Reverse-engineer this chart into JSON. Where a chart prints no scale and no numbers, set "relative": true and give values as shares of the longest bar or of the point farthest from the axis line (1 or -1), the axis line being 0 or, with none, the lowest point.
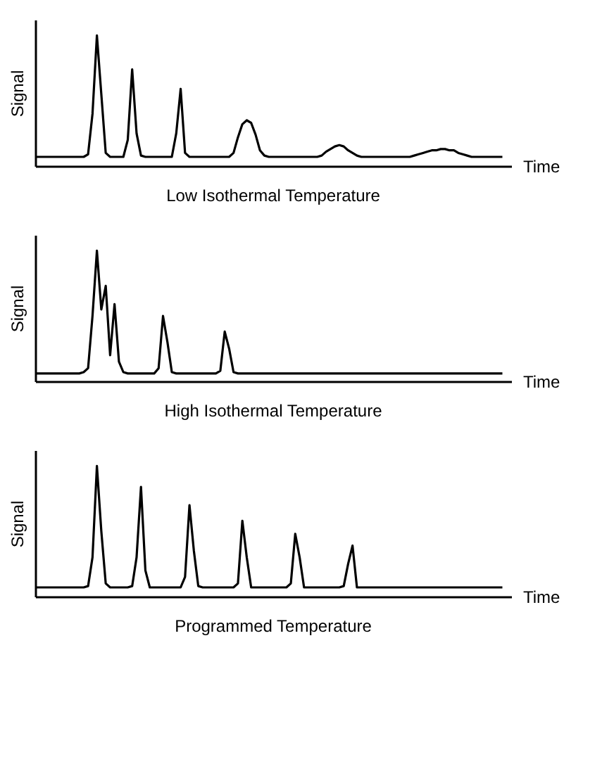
{
  "chart_data": [
    {
      "type": "line",
      "relative": true,
      "title": "Low Isothermal Temperature",
      "xlabel": "Time",
      "ylabel": "Signal",
      "categories": [
        null,
        null,
        null,
        null,
        null,
        null,
        null,
        null,
        null,
        null,
        null,
        null,
        null,
        null,
        null,
        null,
        null,
        null,
        null,
        null,
        null,
        null,
        null,
        null,
        null,
        null,
        null,
        null,
        null,
        null,
        null,
        null,
        null,
        null,
        null,
        null,
        null,
        null,
        null,
        null,
        null,
        null,
        null,
        null,
        null,
        null,
        null,
        null,
        null,
        null,
        null,
        null,
        null,
        null,
        null,
        null,
        null,
        null,
        null,
        null,
        null,
        null,
        null,
        null,
        null,
        null,
        null,
        null,
        null,
        null,
        null,
        null,
        null,
        null,
        null,
        null,
        null,
        null,
        null,
        null,
        null,
        null,
        null,
        null,
        null,
        null,
        null,
        null,
        null,
        null,
        null,
        null,
        null,
        null,
        null,
        null,
        null,
        null,
        null,
        null,
        null,
        null,
        null,
        null,
        null,
        null,
        null,
        null,
        null
      ],
      "series": [
        {
          "color": "#000000",
          "values": [
            0.07,
            0.07,
            0.07,
            0.07,
            0.07,
            0.07,
            0.07,
            0.07,
            0.07,
            0.07,
            0.07,
            0.07,
            0.09,
            0.4,
            1.0,
            0.55,
            0.1,
            0.07,
            0.07,
            0.07,
            0.07,
            0.2,
            0.74,
            0.25,
            0.08,
            0.07,
            0.07,
            0.07,
            0.07,
            0.07,
            0.07,
            0.07,
            0.25,
            0.59,
            0.1,
            0.07,
            0.07,
            0.07,
            0.07,
            0.07,
            0.07,
            0.07,
            0.07,
            0.07,
            0.07,
            0.1,
            0.22,
            0.32,
            0.35,
            0.33,
            0.24,
            0.12,
            0.08,
            0.07,
            0.07,
            0.07,
            0.07,
            0.07,
            0.07,
            0.07,
            0.07,
            0.07,
            0.07,
            0.07,
            0.07,
            0.08,
            0.11,
            0.13,
            0.15,
            0.16,
            0.15,
            0.12,
            0.1,
            0.08,
            0.07,
            0.07,
            0.07,
            0.07,
            0.07,
            0.07,
            0.07,
            0.07,
            0.07,
            0.07,
            0.07,
            0.07,
            0.08,
            0.09,
            0.1,
            0.11,
            0.12,
            0.12,
            0.13,
            0.13,
            0.12,
            0.12,
            0.1,
            0.09,
            0.08,
            0.07,
            0.07,
            0.07,
            0.07,
            0.07,
            0.07,
            0.07,
            0.07,
            null,
            null
          ]
        }
      ]
    },
    {
      "type": "line",
      "relative": true,
      "title": "High Isothermal Temperature",
      "xlabel": "Time",
      "ylabel": "Signal",
      "categories": [
        null,
        null,
        null,
        null,
        null,
        null,
        null,
        null,
        null,
        null,
        null,
        null,
        null,
        null,
        null,
        null,
        null,
        null,
        null,
        null,
        null,
        null,
        null,
        null,
        null,
        null,
        null,
        null,
        null,
        null,
        null,
        null,
        null,
        null,
        null,
        null,
        null,
        null,
        null,
        null,
        null,
        null,
        null,
        null,
        null,
        null,
        null,
        null,
        null,
        null,
        null,
        null,
        null,
        null,
        null,
        null,
        null,
        null,
        null,
        null,
        null,
        null,
        null,
        null,
        null,
        null,
        null,
        null,
        null,
        null,
        null,
        null,
        null,
        null,
        null,
        null,
        null,
        null,
        null,
        null,
        null,
        null,
        null,
        null,
        null,
        null,
        null,
        null,
        null,
        null,
        null,
        null,
        null,
        null,
        null,
        null,
        null,
        null,
        null,
        null,
        null,
        null,
        null,
        null,
        null,
        null,
        null,
        null,
        null
      ],
      "series": [
        {
          "color": "#000000",
          "values": [
            0.06,
            0.06,
            0.06,
            0.06,
            0.06,
            0.06,
            0.06,
            0.06,
            0.06,
            0.06,
            0.06,
            0.07,
            0.1,
            0.5,
            1.0,
            0.55,
            0.73,
            0.2,
            0.59,
            0.15,
            0.07,
            0.06,
            0.06,
            0.06,
            0.06,
            0.06,
            0.06,
            0.06,
            0.1,
            0.5,
            0.3,
            0.07,
            0.06,
            0.06,
            0.06,
            0.06,
            0.06,
            0.06,
            0.06,
            0.06,
            0.06,
            0.06,
            0.08,
            0.38,
            0.25,
            0.07,
            0.06,
            0.06,
            0.06,
            0.06,
            0.06,
            0.06,
            0.06,
            0.06,
            0.06,
            0.06,
            0.06,
            0.06,
            0.06,
            0.06,
            0.06,
            0.06,
            0.06,
            0.06,
            0.06,
            0.06,
            0.06,
            0.06,
            0.06,
            0.06,
            0.06,
            0.06,
            0.06,
            0.06,
            0.06,
            0.06,
            0.06,
            0.06,
            0.06,
            0.06,
            0.06,
            0.06,
            0.06,
            0.06,
            0.06,
            0.06,
            0.06,
            0.06,
            0.06,
            0.06,
            0.06,
            0.06,
            0.06,
            0.06,
            0.06,
            0.06,
            0.06,
            0.06,
            0.06,
            0.06,
            0.06,
            0.06,
            0.06,
            0.06,
            0.06,
            0.06,
            0.06,
            null,
            null
          ]
        }
      ]
    },
    {
      "type": "line",
      "relative": true,
      "title": "Programmed Temperature",
      "xlabel": "Time",
      "ylabel": "Signal",
      "categories": [
        null,
        null,
        null,
        null,
        null,
        null,
        null,
        null,
        null,
        null,
        null,
        null,
        null,
        null,
        null,
        null,
        null,
        null,
        null,
        null,
        null,
        null,
        null,
        null,
        null,
        null,
        null,
        null,
        null,
        null,
        null,
        null,
        null,
        null,
        null,
        null,
        null,
        null,
        null,
        null,
        null,
        null,
        null,
        null,
        null,
        null,
        null,
        null,
        null,
        null,
        null,
        null,
        null,
        null,
        null,
        null,
        null,
        null,
        null,
        null,
        null,
        null,
        null,
        null,
        null,
        null,
        null,
        null,
        null,
        null,
        null,
        null,
        null,
        null,
        null,
        null,
        null,
        null,
        null,
        null,
        null,
        null,
        null,
        null,
        null,
        null,
        null,
        null,
        null,
        null,
        null,
        null,
        null,
        null,
        null,
        null,
        null,
        null,
        null,
        null,
        null,
        null,
        null,
        null,
        null,
        null,
        null,
        null,
        null
      ],
      "series": [
        {
          "color": "#000000",
          "values": [
            0.07,
            0.07,
            0.07,
            0.07,
            0.07,
            0.07,
            0.07,
            0.07,
            0.07,
            0.07,
            0.07,
            0.07,
            0.08,
            0.3,
            1.0,
            0.5,
            0.1,
            0.07,
            0.07,
            0.07,
            0.07,
            0.07,
            0.08,
            0.3,
            0.84,
            0.2,
            0.07,
            0.07,
            0.07,
            0.07,
            0.07,
            0.07,
            0.07,
            0.07,
            0.15,
            0.7,
            0.35,
            0.08,
            0.07,
            0.07,
            0.07,
            0.07,
            0.07,
            0.07,
            0.07,
            0.07,
            0.1,
            0.58,
            0.3,
            0.07,
            0.07,
            0.07,
            0.07,
            0.07,
            0.07,
            0.07,
            0.07,
            0.07,
            0.1,
            0.48,
            0.3,
            0.07,
            0.07,
            0.07,
            0.07,
            0.07,
            0.07,
            0.07,
            0.07,
            0.07,
            0.08,
            0.25,
            0.39,
            0.07,
            0.07,
            0.07,
            0.07,
            0.07,
            0.07,
            0.07,
            0.07,
            0.07,
            0.07,
            0.07,
            0.07,
            0.07,
            0.07,
            0.07,
            0.07,
            0.07,
            0.07,
            0.07,
            0.07,
            0.07,
            0.07,
            0.07,
            0.07,
            0.07,
            0.07,
            0.07,
            0.07,
            0.07,
            0.07,
            0.07,
            0.07,
            0.07,
            0.07,
            null,
            null
          ]
        }
      ]
    }
  ]
}
